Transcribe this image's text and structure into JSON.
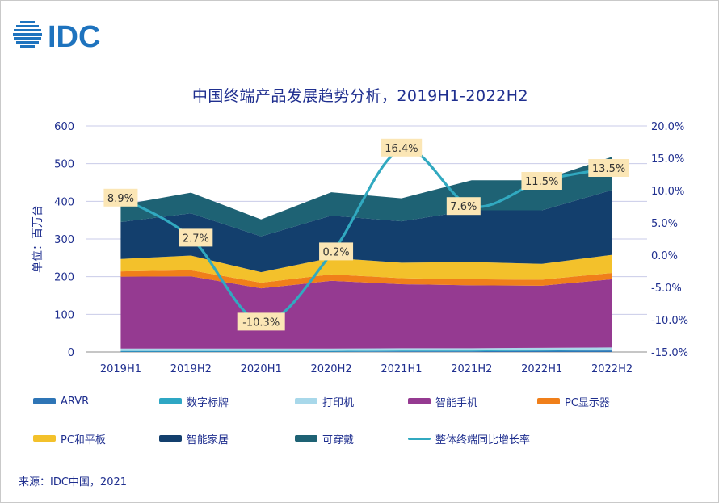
{
  "title": "中国终端产品发展趋势分析，2019H1-2022H2",
  "logo": {
    "text": "IDC",
    "color": "#1e73be"
  },
  "source": "来源：IDC中国，2021",
  "chart_data": {
    "type": "area",
    "title": "中国终端产品发展趋势分析，2019H1-2022H2",
    "categories": [
      "2019H1",
      "2019H2",
      "2020H1",
      "2020H2",
      "2021H1",
      "2021H2",
      "2022H1",
      "2022H2"
    ],
    "y_left": {
      "label": "单位：百万台",
      "min": 0,
      "max": 600,
      "ticks": [
        0,
        100,
        200,
        300,
        400,
        500,
        600
      ]
    },
    "y_right": {
      "min": -15,
      "max": 20,
      "ticks": [
        "-15.0%",
        "-10.0%",
        "-5.0%",
        "0.0%",
        "5.0%",
        "10.0%",
        "15.0%",
        "20.0%"
      ]
    },
    "grid": true,
    "stacked": true,
    "series": [
      {
        "name": "ARVR",
        "color": "#2e75b6",
        "values": [
          1,
          1,
          1,
          1,
          2,
          2,
          3,
          4
        ]
      },
      {
        "name": "数字标牌",
        "color": "#2ea7c4",
        "values": [
          2,
          2,
          2,
          2,
          2,
          2,
          2,
          2
        ]
      },
      {
        "name": "打印机",
        "color": "#a8d8ea",
        "values": [
          6,
          6,
          6,
          6,
          6,
          6,
          6,
          6
        ]
      },
      {
        "name": "智能手机",
        "color": "#953a91",
        "values": [
          191,
          192,
          160,
          180,
          170,
          167,
          165,
          181
        ]
      },
      {
        "name": "PC显示器",
        "color": "#f07f1a",
        "values": [
          14,
          16,
          15,
          17,
          16,
          16,
          16,
          17
        ]
      },
      {
        "name": "PC和平板",
        "color": "#f3c12b",
        "values": [
          33,
          39,
          28,
          44,
          41,
          46,
          42,
          48
        ]
      },
      {
        "name": "智能家居",
        "color": "#133f6d",
        "values": [
          98,
          112,
          95,
          112,
          110,
          137,
          142,
          172
        ]
      },
      {
        "name": "可穿戴",
        "color": "#1e6274",
        "values": [
          45,
          55,
          45,
          62,
          61,
          80,
          80,
          88
        ]
      }
    ],
    "growth": {
      "name": "整体终端同比增长率",
      "color": "#31a9c0",
      "values": [
        8.9,
        2.7,
        -10.3,
        0.2,
        16.4,
        7.6,
        11.5,
        13.5
      ],
      "labels": [
        "8.9%",
        "2.7%",
        "-10.3%",
        "0.2%",
        "16.4%",
        "7.6%",
        "11.5%",
        "13.5%"
      ]
    }
  }
}
